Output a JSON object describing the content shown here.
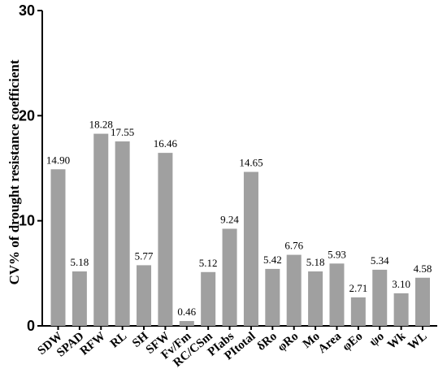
{
  "chart_data": {
    "type": "bar",
    "title": "",
    "xlabel": "",
    "ylabel": "CV% of drought resistance coefficient",
    "ylim": [
      0,
      30
    ],
    "yticks": [
      0,
      10,
      20,
      30
    ],
    "grid": false,
    "bar_color": "#a0a0a0",
    "categories": [
      "SDW",
      "SPAD",
      "RFW",
      "RL",
      "SH",
      "SFW",
      "Fv/Fm",
      "RC/CSm",
      "PIabs",
      "PItotal",
      "δRo",
      "φRo",
      "Mo",
      "Area",
      "φEo",
      "ψo",
      "Wk",
      "WL"
    ],
    "values": [
      14.9,
      5.18,
      18.28,
      17.55,
      5.77,
      16.46,
      0.46,
      5.12,
      9.24,
      14.65,
      5.42,
      6.76,
      5.18,
      5.93,
      2.71,
      5.34,
      3.1,
      4.58
    ],
    "value_labels": [
      "14.90",
      "5.18",
      "18.28",
      "17.55",
      "5.77",
      "16.46",
      "0.46",
      "5.12",
      "9.24",
      "14.65",
      "5.42",
      "6.76",
      "5.18",
      "5.93",
      "2.71",
      "5.34",
      "3.10",
      "4.58"
    ]
  }
}
